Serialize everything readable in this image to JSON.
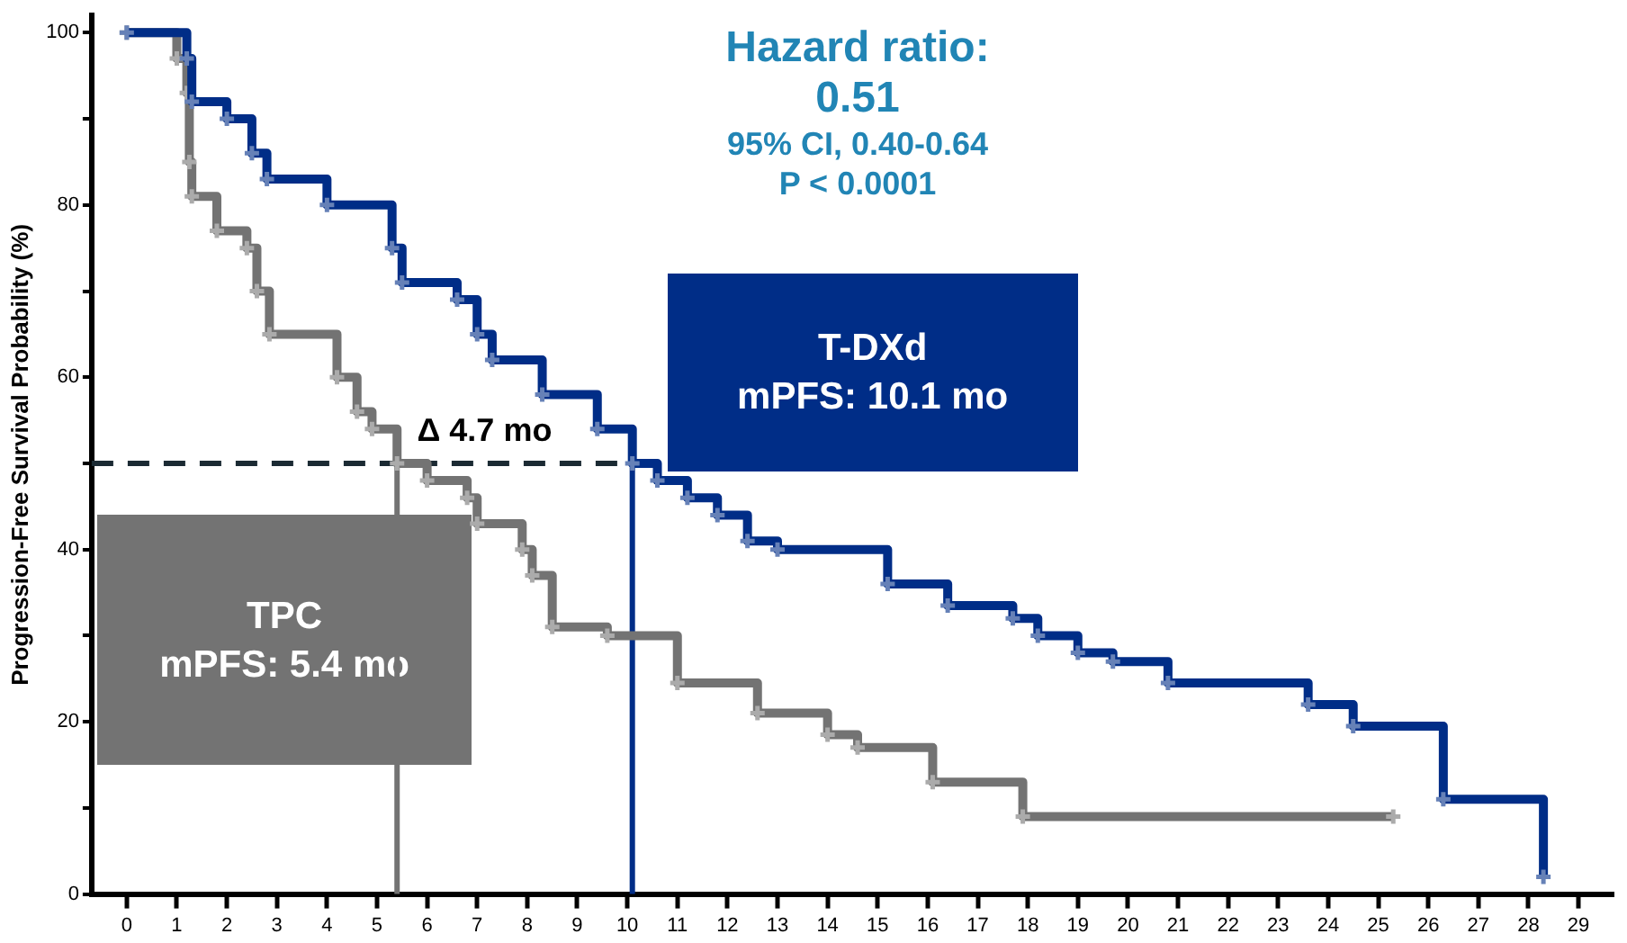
{
  "chart_data": {
    "type": "step",
    "ylabel": "Progression-Free Survival Probability (%)",
    "xlim": [
      -0.7,
      29.7
    ],
    "xticks": [
      0,
      1,
      2,
      3,
      4,
      5,
      6,
      7,
      8,
      9,
      10,
      11,
      12,
      13,
      14,
      15,
      16,
      17,
      18,
      19,
      20,
      21,
      22,
      23,
      24,
      25,
      26,
      27,
      28,
      29
    ],
    "ylim": [
      0,
      102
    ],
    "yticks": [
      0,
      {
        "value": 10,
        "label": null
      },
      20,
      {
        "value": 30,
        "label": null
      },
      40,
      {
        "value": 50,
        "label": null
      },
      60,
      {
        "value": 70,
        "label": null
      },
      80,
      {
        "value": 90,
        "label": null
      },
      100
    ],
    "grid": false,
    "legend": false,
    "marker": "cross",
    "line_style": "solid",
    "series": [
      {
        "name": "T-DXd",
        "color": "#002d87",
        "x": [
          0,
          1.2,
          1.3,
          2.0,
          2.5,
          2.8,
          4.0,
          5.3,
          5.5,
          6.6,
          7.0,
          7.3,
          8.3,
          9.4,
          10.1,
          10.6,
          11.2,
          11.8,
          12.4,
          13.0,
          15.2,
          16.4,
          17.7,
          18.2,
          19.0,
          19.7,
          20.8,
          23.6,
          24.5,
          26.3,
          28.3
        ],
        "values": [
          100,
          97,
          92,
          90,
          86,
          83,
          80,
          75,
          71,
          69,
          65,
          62,
          58,
          54,
          50,
          48,
          46,
          44,
          41,
          40,
          36,
          33.5,
          32,
          30,
          28,
          27,
          24.5,
          22,
          19.5,
          11,
          2
        ]
      },
      {
        "name": "TPC",
        "color": "#737373",
        "x": [
          0,
          1.0,
          1.2,
          1.25,
          1.3,
          1.8,
          2.4,
          2.6,
          2.85,
          4.2,
          4.6,
          4.9,
          5.4,
          6.0,
          6.8,
          7.0,
          7.9,
          8.1,
          8.5,
          9.6,
          11.0,
          12.6,
          14.0,
          14.6,
          16.1,
          17.9,
          25.3
        ],
        "values": [
          100,
          97,
          93,
          85,
          81,
          77,
          75,
          70,
          65,
          60,
          56,
          54,
          50,
          48,
          46,
          43,
          40,
          37,
          31,
          30,
          24.5,
          21,
          18.5,
          17,
          13,
          9,
          9
        ]
      }
    ],
    "ref_lines": [
      {
        "axis": "y",
        "value": 50,
        "color": "#1b2a33",
        "line_style": "dashed"
      },
      {
        "axis": "x",
        "value": 5.4,
        "color": "#737373"
      },
      {
        "axis": "x",
        "value": 10.1,
        "color": "#002d87"
      }
    ],
    "annotations": [
      "Hazard ratio: 0.51",
      "95% CI, 0.40-0.64",
      "P < 0.0001",
      "Δ 4.7 mo",
      "mPFS: 10.1 mo",
      "mPFS: 5.4 mo"
    ]
  }
}
